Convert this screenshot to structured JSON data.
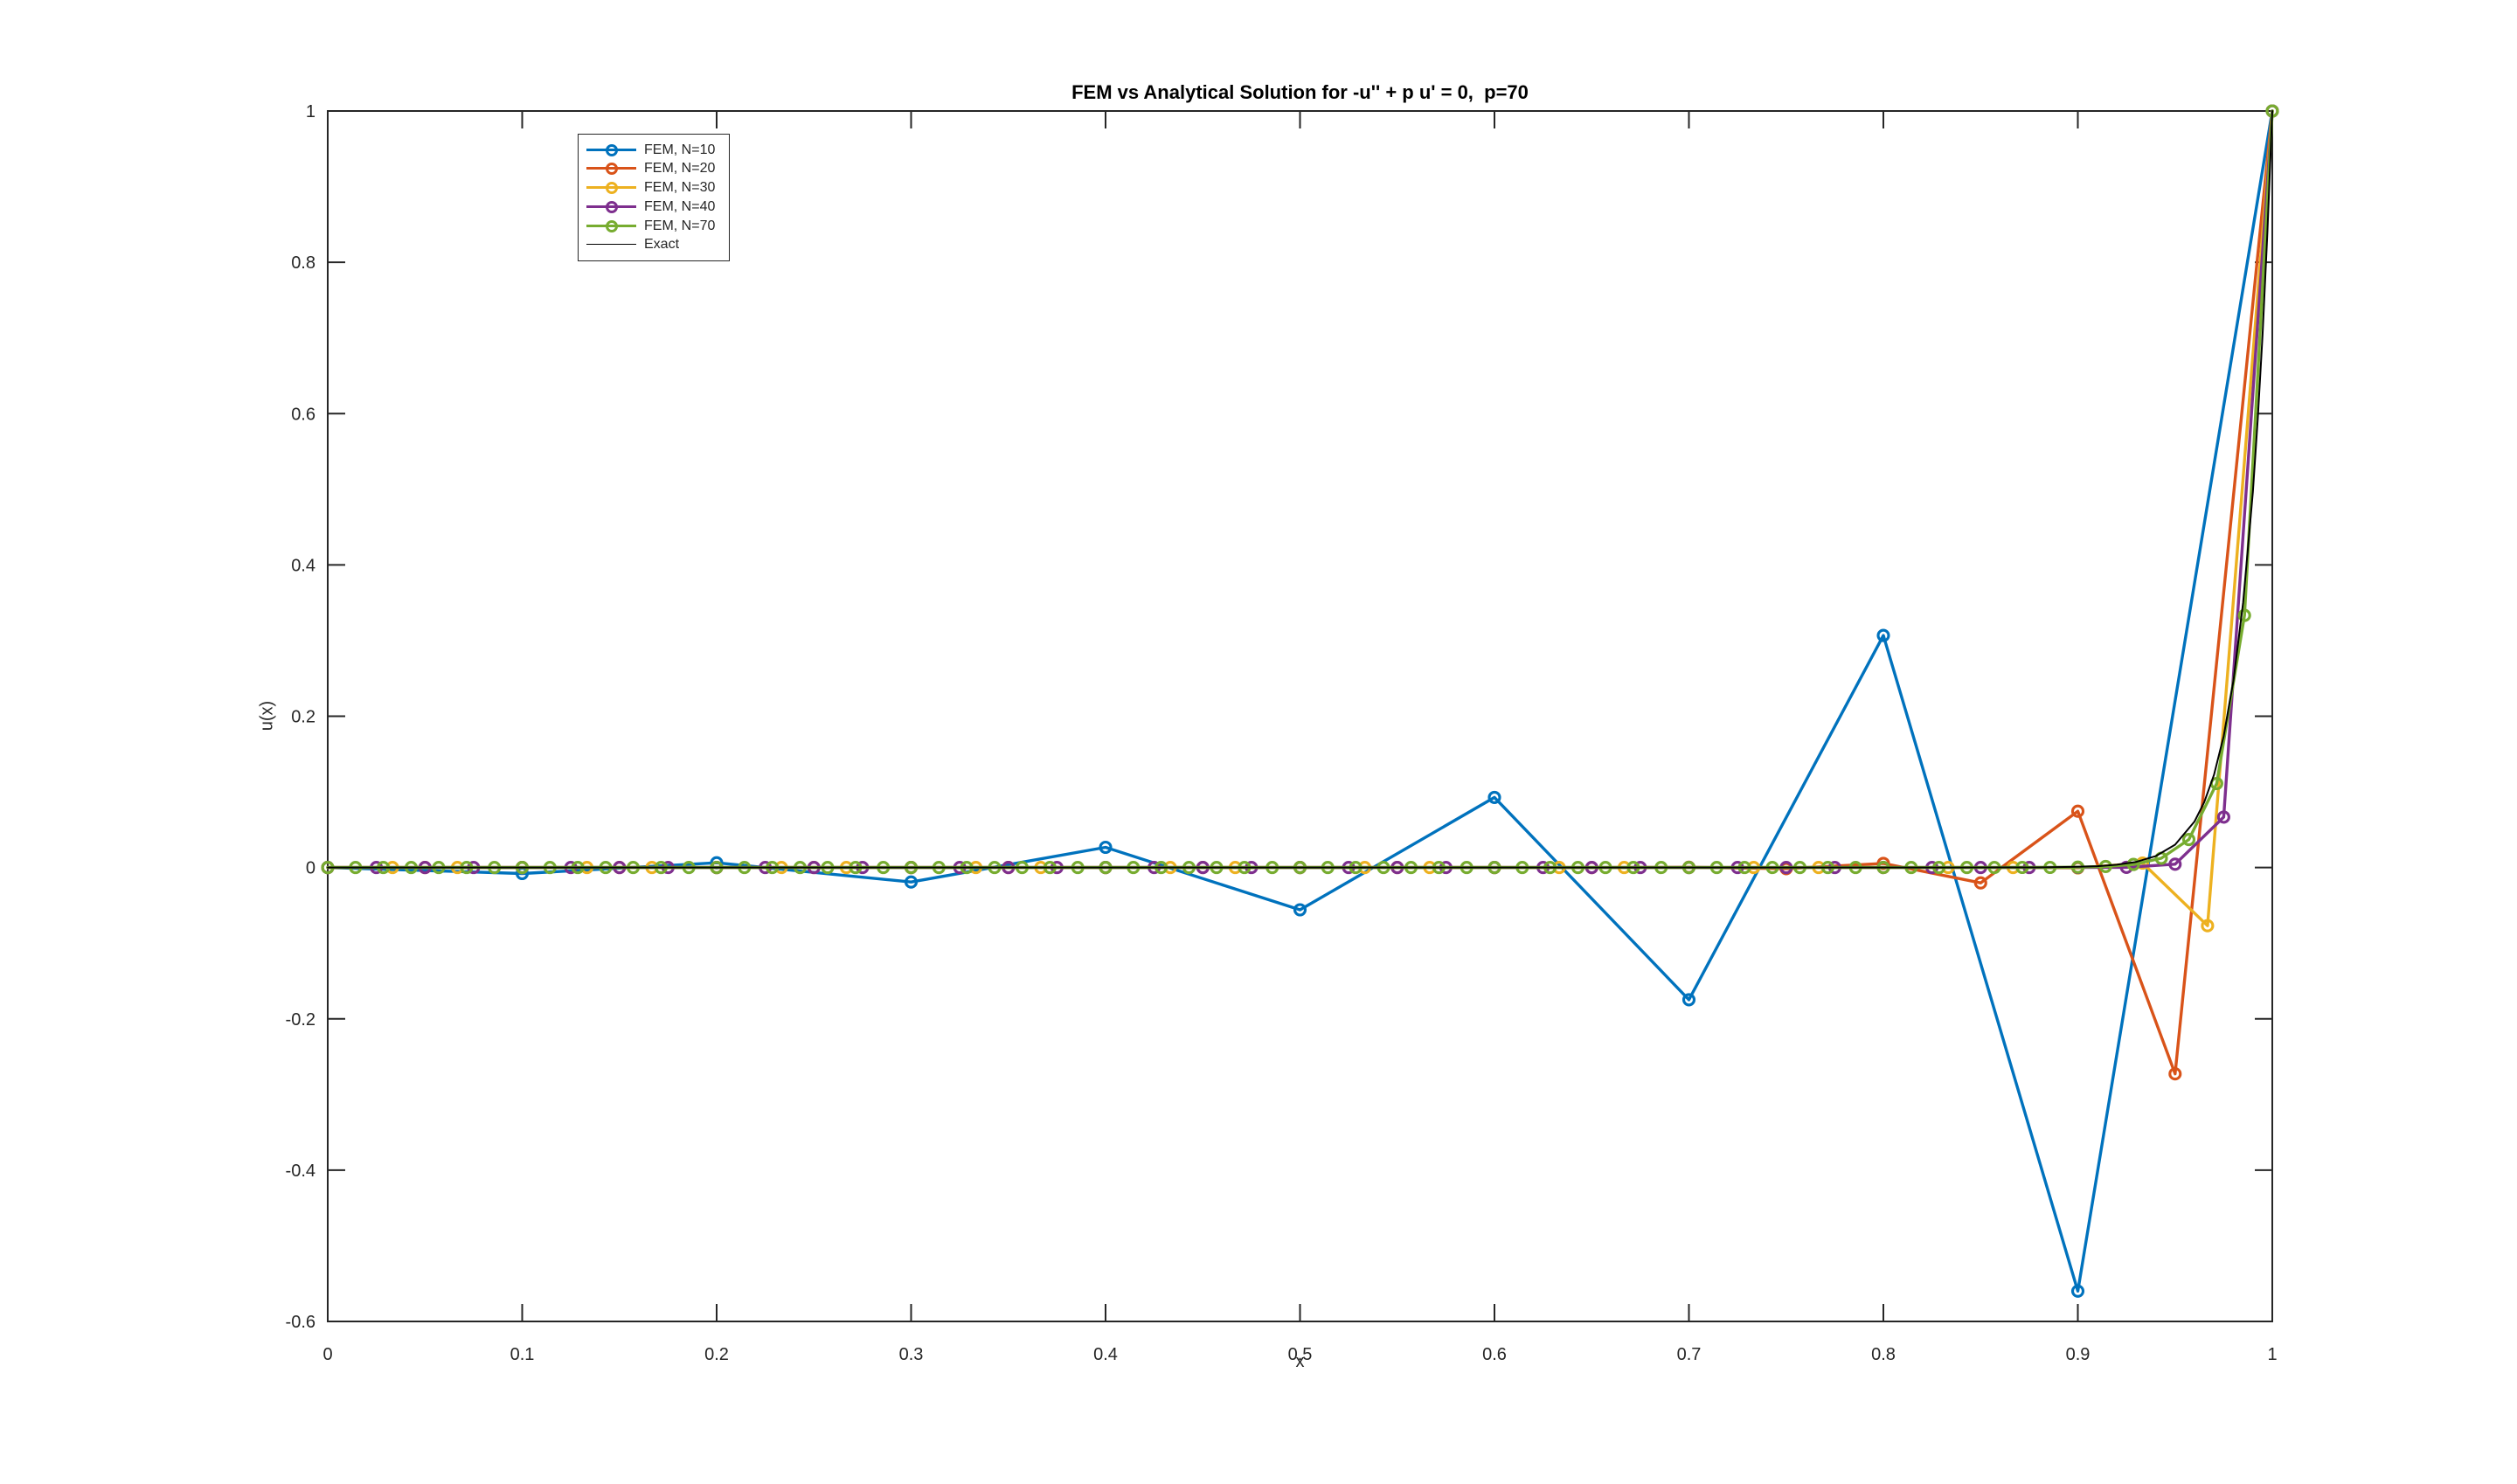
{
  "chart_data": {
    "type": "line",
    "title": "FEM vs Analytical Solution for -u'' + p u' = 0,  p=70",
    "xlabel": "x",
    "ylabel": "u(x)",
    "xlim": [
      0,
      1
    ],
    "ylim": [
      -0.6,
      1
    ],
    "xticks": [
      0,
      0.1,
      0.2,
      0.3,
      0.4,
      0.5,
      0.6,
      0.7,
      0.8,
      0.9,
      1
    ],
    "yticks": [
      -0.6,
      -0.4,
      -0.2,
      0,
      0.2,
      0.4,
      0.6,
      0.8,
      1
    ],
    "grid": false,
    "box": true,
    "background": "#ffffff",
    "axis_color": "#262626",
    "legend": {
      "position": "top-left-inside",
      "entries": [
        "FEM, N=10",
        "FEM, N=20",
        "FEM, N=30",
        "FEM, N=40",
        "FEM, N=70",
        "Exact"
      ]
    },
    "series": [
      {
        "name": "FEM, N=10",
        "color": "#0072BD",
        "marker": "o",
        "x": [
          0,
          0.1,
          0.2,
          0.3,
          0.4,
          0.5,
          0.6,
          0.7,
          0.8,
          0.9,
          1
        ],
        "y": [
          0,
          -0.0079,
          0.0063,
          -0.0192,
          0.0267,
          -0.0559,
          0.0927,
          -0.1748,
          0.3067,
          -0.5599,
          1
        ]
      },
      {
        "name": "FEM, N=20",
        "color": "#D95319",
        "marker": "o",
        "x": [
          0,
          0.05,
          0.1,
          0.15,
          0.2,
          0.25,
          0.3,
          0.35,
          0.4,
          0.45,
          0.5,
          0.55,
          0.6,
          0.65,
          0.7,
          0.75,
          0.8,
          0.85,
          0.9,
          0.95,
          1
        ],
        "y": [
          0,
          0,
          0,
          0,
          0,
          0,
          0,
          0,
          0,
          0,
          0,
          0,
          0,
          -0.0001,
          0.0004,
          -0.0015,
          0.0055,
          -0.0203,
          0.0744,
          -0.2727,
          1
        ]
      },
      {
        "name": "FEM, N=30",
        "color": "#EDB120",
        "marker": "o",
        "x": [
          0,
          0.0333,
          0.0667,
          0.1,
          0.1333,
          0.1667,
          0.2,
          0.2333,
          0.2667,
          0.3,
          0.3333,
          0.3667,
          0.4,
          0.4333,
          0.4667,
          0.5,
          0.5333,
          0.5667,
          0.6,
          0.6333,
          0.6667,
          0.7,
          0.7333,
          0.7667,
          0.8,
          0.8333,
          0.8667,
          0.9,
          0.9333,
          0.9667,
          1
        ],
        "y": [
          0,
          0,
          0,
          0,
          0,
          0,
          0,
          0,
          0,
          0,
          0,
          0,
          0,
          0,
          0,
          0,
          0,
          0,
          0,
          0,
          0,
          0,
          0,
          0,
          0,
          0,
          0,
          -0.0005,
          0.0059,
          -0.0769,
          1
        ]
      },
      {
        "name": "FEM, N=40",
        "color": "#7E2F8E",
        "marker": "o",
        "x": [
          0,
          0.025,
          0.05,
          0.075,
          0.1,
          0.125,
          0.15,
          0.175,
          0.2,
          0.225,
          0.25,
          0.275,
          0.3,
          0.325,
          0.35,
          0.375,
          0.4,
          0.425,
          0.45,
          0.475,
          0.5,
          0.525,
          0.55,
          0.575,
          0.6,
          0.625,
          0.65,
          0.675,
          0.7,
          0.725,
          0.75,
          0.775,
          0.8,
          0.825,
          0.85,
          0.875,
          0.9,
          0.925,
          0.95,
          0.975,
          1
        ],
        "y": [
          0,
          0,
          0,
          0,
          0,
          0,
          0,
          0,
          0,
          0,
          0,
          0,
          0,
          0,
          0,
          0,
          0,
          0,
          0,
          0,
          0,
          0,
          0,
          0,
          0,
          0,
          0,
          0,
          0,
          0,
          0,
          0,
          0,
          0,
          0,
          0,
          0,
          0.0003,
          0.0044,
          0.0667,
          1
        ]
      },
      {
        "name": "FEM, N=70",
        "color": "#77AC30",
        "marker": "o",
        "x": [
          0,
          0.0143,
          0.0286,
          0.0429,
          0.0571,
          0.0714,
          0.0857,
          0.1,
          0.1143,
          0.1286,
          0.1429,
          0.1571,
          0.1714,
          0.1857,
          0.2,
          0.2143,
          0.2286,
          0.2429,
          0.2571,
          0.2714,
          0.2857,
          0.3,
          0.3143,
          0.3286,
          0.3429,
          0.3571,
          0.3714,
          0.3857,
          0.4,
          0.4143,
          0.4286,
          0.4429,
          0.4571,
          0.4714,
          0.4857,
          0.5,
          0.5143,
          0.5286,
          0.5429,
          0.5571,
          0.5714,
          0.5857,
          0.6,
          0.6143,
          0.6286,
          0.6429,
          0.6571,
          0.6714,
          0.6857,
          0.7,
          0.7143,
          0.7286,
          0.7429,
          0.7571,
          0.7714,
          0.7857,
          0.8,
          0.8143,
          0.8286,
          0.8429,
          0.8571,
          0.8714,
          0.8857,
          0.9,
          0.9143,
          0.9286,
          0.9429,
          0.9571,
          0.9714,
          0.9857,
          1
        ],
        "y": [
          0,
          0,
          0,
          0,
          0,
          0,
          0,
          0,
          0,
          0,
          0,
          0,
          0,
          0,
          0,
          0,
          0,
          0,
          0,
          0,
          0,
          0,
          0,
          0,
          0,
          0,
          0,
          0,
          0,
          0,
          0,
          0,
          0,
          0,
          0,
          0,
          0,
          0,
          0,
          0,
          0,
          0,
          0,
          0,
          0,
          0,
          0,
          0,
          0,
          0,
          0,
          0,
          0,
          0,
          0,
          0,
          0,
          0,
          0,
          0,
          0,
          0.0001,
          0.0002,
          0.0005,
          0.0014,
          0.0041,
          0.0123,
          0.037,
          0.1111,
          0.3333,
          1
        ]
      },
      {
        "name": "Exact",
        "color": "#000000",
        "marker": "none",
        "x": [
          0,
          0.1,
          0.2,
          0.3,
          0.4,
          0.5,
          0.6,
          0.7,
          0.75,
          0.8,
          0.84,
          0.86,
          0.88,
          0.9,
          0.91,
          0.92,
          0.93,
          0.94,
          0.95,
          0.96,
          0.965,
          0.97,
          0.975,
          0.98,
          0.985,
          0.99,
          0.9925,
          0.995,
          0.9975,
          1
        ],
        "y": [
          0,
          0,
          0,
          0,
          0,
          0,
          0,
          0,
          0,
          0,
          0,
          0.0001,
          0.0002,
          0.0009,
          0.0018,
          0.0037,
          0.0074,
          0.015,
          0.0302,
          0.0608,
          0.0863,
          0.1225,
          0.1738,
          0.2466,
          0.3499,
          0.4966,
          0.5916,
          0.7047,
          0.8395,
          1
        ]
      }
    ]
  }
}
